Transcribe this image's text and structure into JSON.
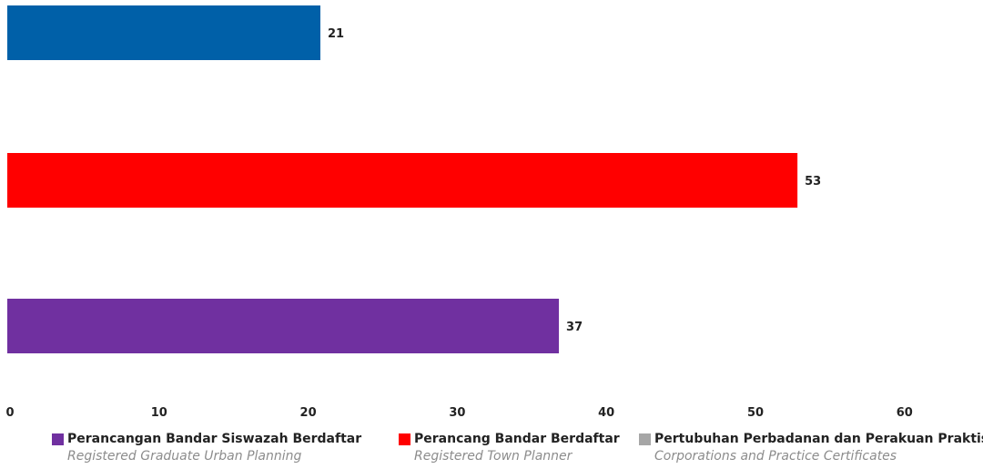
{
  "chart_data": {
    "type": "bar",
    "orientation": "horizontal",
    "title": "",
    "xlabel": "",
    "ylabel": "",
    "xlim": [
      0,
      65
    ],
    "ticks": [
      0,
      10,
      20,
      30,
      40,
      50,
      60
    ],
    "grid": false,
    "legend_placement": "bottom",
    "bars": [
      {
        "value": 21,
        "label": "21",
        "color": "#0060a8"
      },
      {
        "value": 53,
        "label": "53",
        "color": "#ff0000"
      },
      {
        "value": 37,
        "label": "37",
        "color": "#7030a0"
      }
    ],
    "legend": [
      {
        "name": "Perancangan Bandar Siswazah Berdaftar",
        "subtitle": "Registered Graduate Urban Planning",
        "color": "#7030a0"
      },
      {
        "name": "Perancang Bandar Berdaftar",
        "subtitle": "Registered Town Planner",
        "color": "#ff0000"
      },
      {
        "name": "Pertubuhan Perbadanan dan Perakuan Praktis",
        "subtitle": "Corporations and Practice Certificates",
        "color": "#a6a6a6"
      }
    ]
  }
}
